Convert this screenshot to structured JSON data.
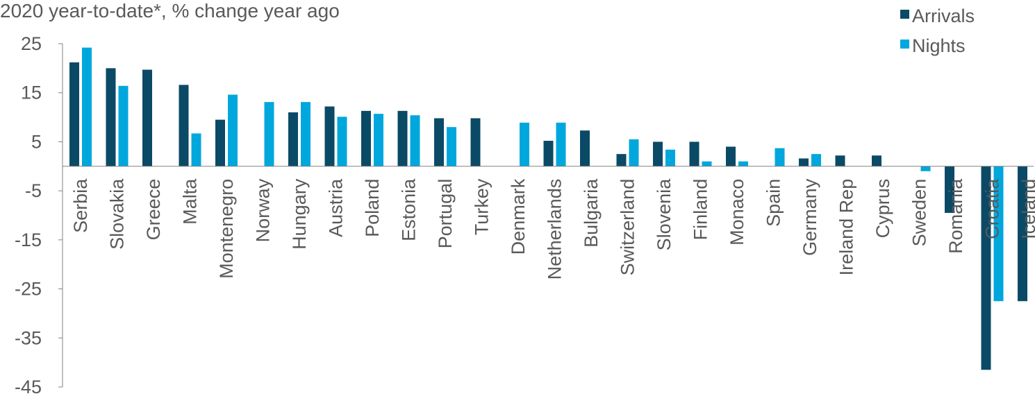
{
  "chart_data": {
    "type": "bar",
    "subtitle": "2020 year-to-date*,  % change year ago",
    "categories": [
      "Serbia",
      "Slovakia",
      "Greece",
      "Malta",
      "Montenegro",
      "Norway",
      "Hungary",
      "Austria",
      "Poland",
      "Estonia",
      "Portugal",
      "Turkey",
      "Denmark",
      "Netherlands",
      "Bulgaria",
      "Switzerland",
      "Slovenia",
      "Finland",
      "Monaco",
      "Spain",
      "Germany",
      "Ireland Rep",
      "Cyprus",
      "Sweden",
      "Romania",
      "Croatia",
      "Iceland"
    ],
    "series": [
      {
        "name": "Arrivals",
        "color": "#0b4a66",
        "values": [
          21.2,
          20.0,
          19.7,
          16.6,
          9.5,
          null,
          11.0,
          12.2,
          11.3,
          11.3,
          9.8,
          9.8,
          null,
          5.2,
          7.3,
          2.5,
          5.0,
          5.0,
          4.0,
          null,
          1.6,
          2.2,
          2.2,
          null,
          -9.5,
          -41.5,
          -27.5
        ]
      },
      {
        "name": "Nights",
        "color": "#00a7dc",
        "values": [
          24.2,
          16.4,
          null,
          6.7,
          14.6,
          13.1,
          13.1,
          10.1,
          10.7,
          10.4,
          8.0,
          null,
          8.9,
          8.9,
          null,
          5.5,
          3.4,
          1.0,
          1.0,
          3.7,
          2.5,
          null,
          null,
          -1.0,
          null,
          -27.5,
          null
        ]
      }
    ],
    "y_ticks": [
      "25",
      "15",
      "5",
      "-5",
      "-15",
      "-25",
      "-35",
      "-45"
    ],
    "ylim": [
      -45,
      25
    ],
    "legend_position": "top-right",
    "grid": false
  }
}
